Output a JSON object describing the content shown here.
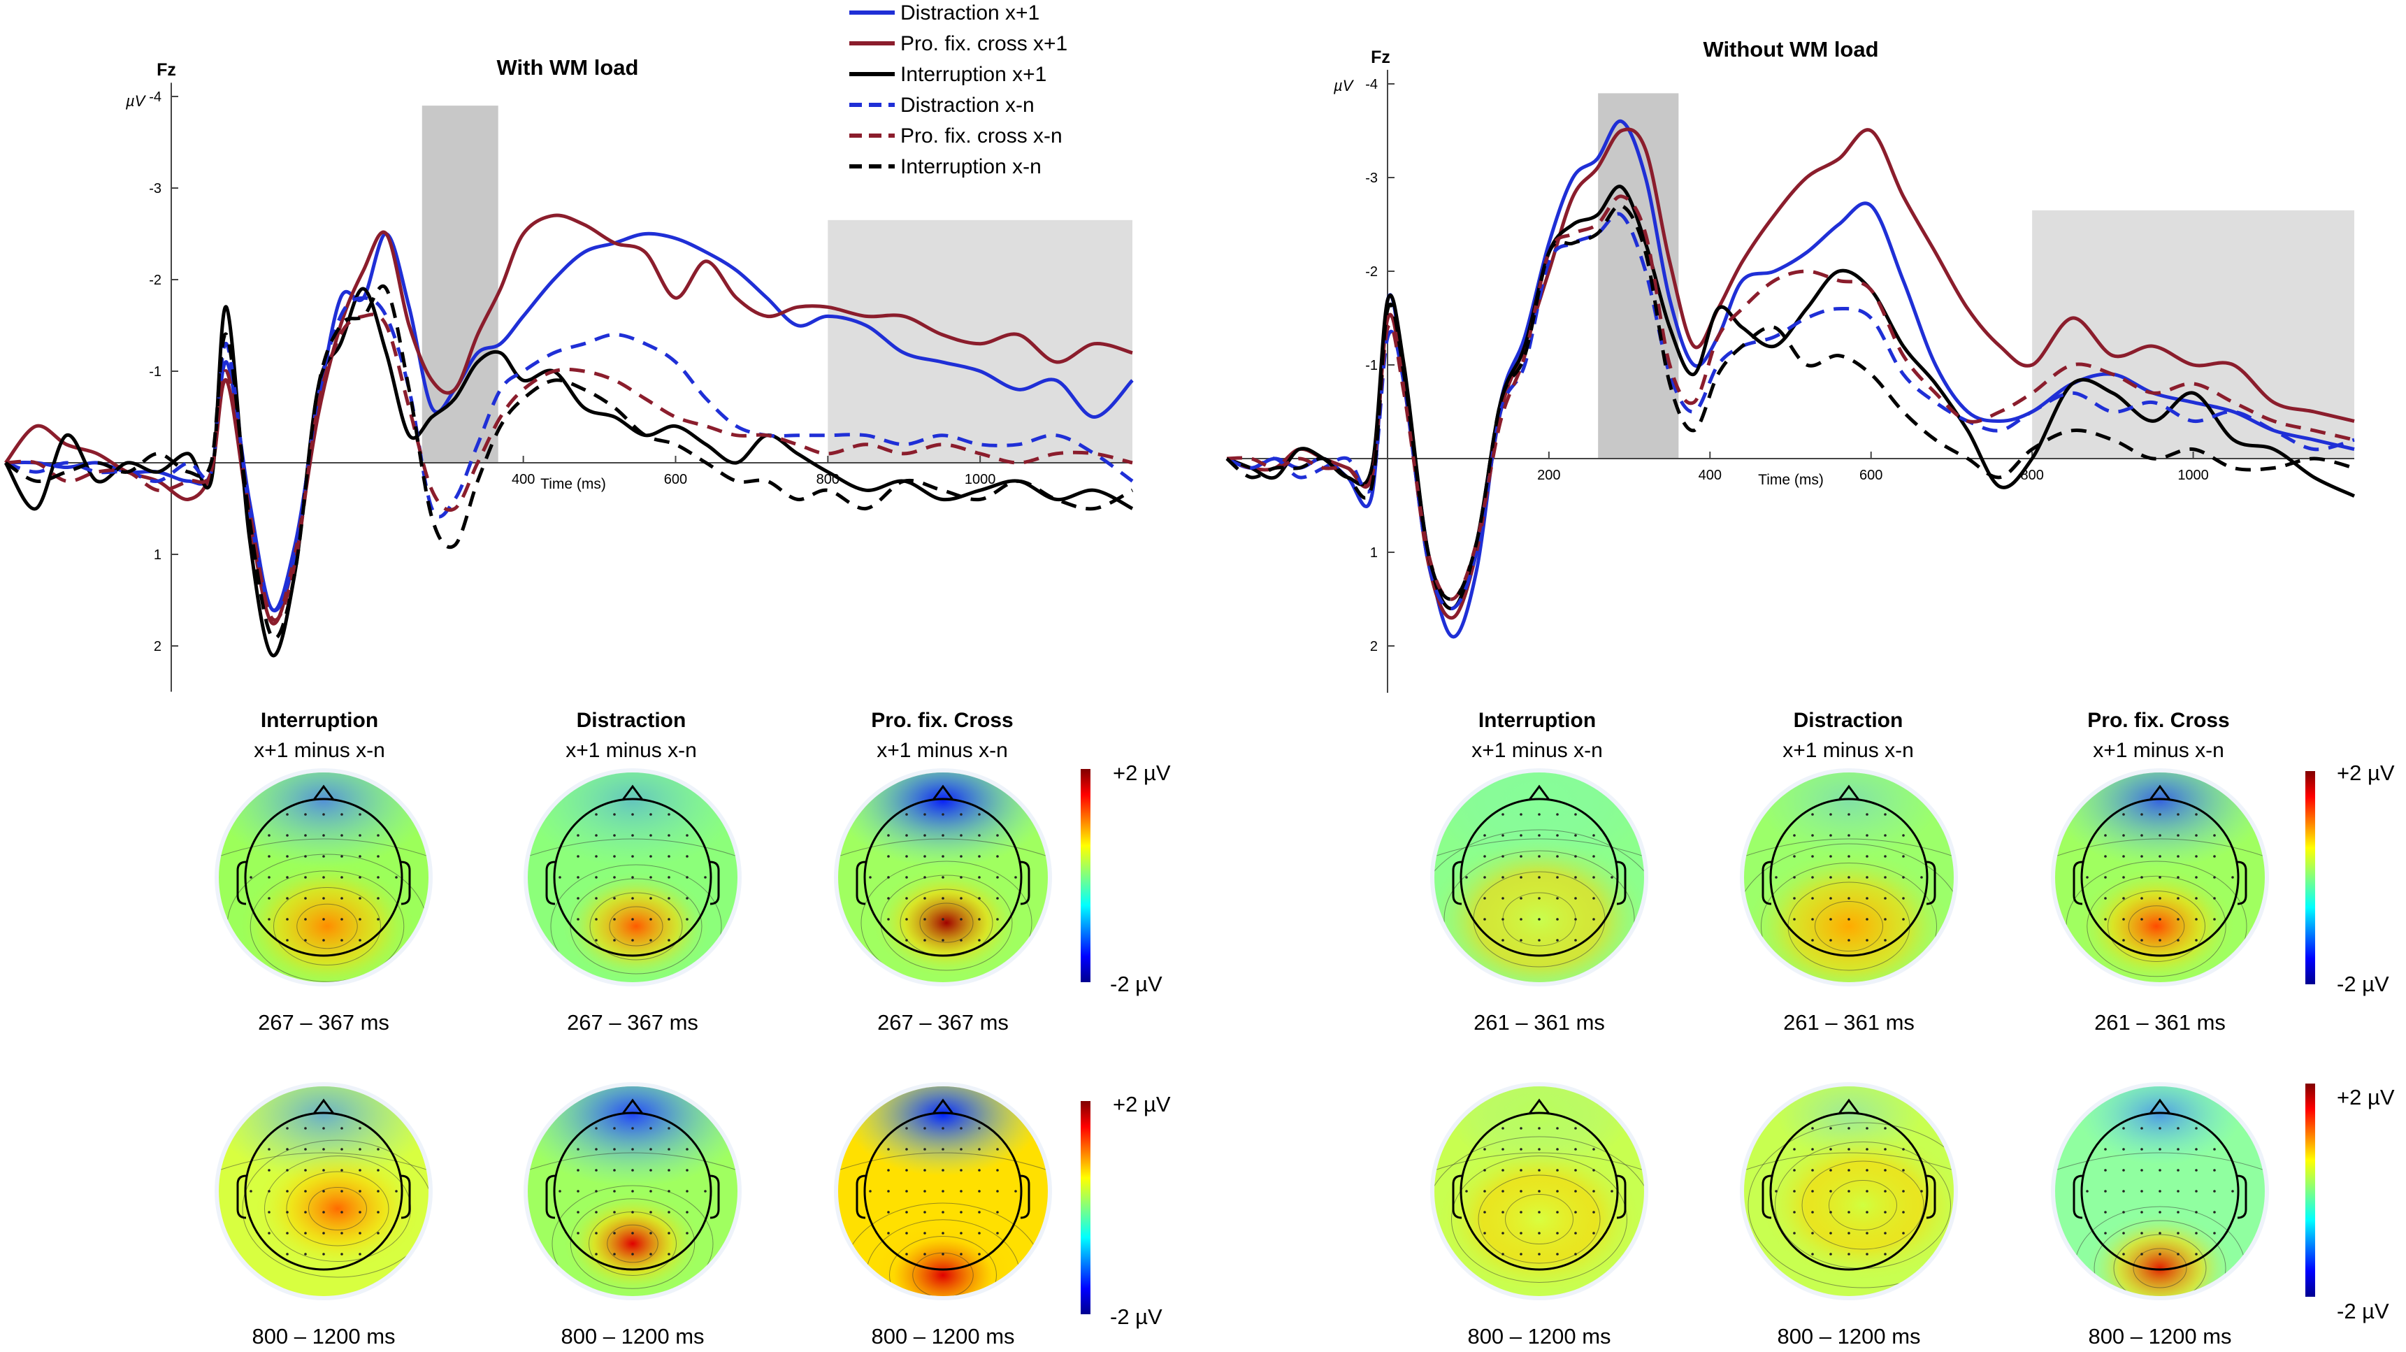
{
  "colors": {
    "distraction": "#1f2fd6",
    "profix": "#8b1d2c",
    "interruption": "#000000",
    "window": "#c8c8c8",
    "window_light": "#dedede"
  },
  "legend": [
    {
      "label": "Distraction x+1",
      "color": "#1f2fd6",
      "dashed": false
    },
    {
      "label": "Pro. fix. cross x+1",
      "color": "#8b1d2c",
      "dashed": false
    },
    {
      "label": "Interruption x+1",
      "color": "#000000",
      "dashed": false
    },
    {
      "label": "Distraction x-n",
      "color": "#1f2fd6",
      "dashed": true
    },
    {
      "label": "Pro. fix. cross x-n",
      "color": "#8b1d2c",
      "dashed": true
    },
    {
      "label": "Interruption x-n",
      "color": "#000000",
      "dashed": true
    }
  ],
  "chart_data": [
    {
      "type": "line",
      "title": "With WM load",
      "channel": "Fz",
      "unit": "µV",
      "xlabel": "Time (ms)",
      "x_ticks": [
        "400",
        "600",
        "800",
        "1000"
      ],
      "y_ticks": [
        "-4",
        "-3",
        "-2",
        "-1",
        "1",
        "2"
      ],
      "xlim": [
        -280,
        1200
      ],
      "ylim": [
        -4,
        2.5
      ],
      "y_inverted": true,
      "windows_ms": [
        [
          267,
          367
        ],
        [
          800,
          1200
        ]
      ],
      "x": [
        -280,
        -240,
        -200,
        -160,
        -120,
        -80,
        -40,
        -10,
        10,
        40,
        70,
        100,
        130,
        160,
        190,
        220,
        250,
        280,
        310,
        340,
        370,
        400,
        440,
        480,
        520,
        560,
        600,
        640,
        680,
        720,
        760,
        800,
        850,
        900,
        950,
        1000,
        1050,
        1100,
        1150,
        1200
      ],
      "series": [
        {
          "name": "Distraction x+1",
          "values": [
            0.0,
            0.0,
            0.05,
            0.0,
            0.1,
            0.1,
            0.2,
            0.1,
            -1.1,
            0.4,
            1.6,
            0.9,
            -0.6,
            -1.8,
            -1.8,
            -2.5,
            -1.7,
            -0.6,
            -0.8,
            -1.2,
            -1.3,
            -1.6,
            -2.0,
            -2.3,
            -2.4,
            -2.5,
            -2.45,
            -2.3,
            -2.1,
            -1.8,
            -1.5,
            -1.6,
            -1.5,
            -1.2,
            -1.1,
            -1.0,
            -0.8,
            -0.9,
            -0.5,
            -0.9
          ]
        },
        {
          "name": "Pro. fix. cross x+1",
          "values": [
            0.0,
            -0.4,
            -0.2,
            -0.1,
            0.1,
            0.2,
            0.4,
            0.1,
            -0.9,
            0.6,
            1.75,
            1.0,
            -0.5,
            -1.5,
            -2.1,
            -2.5,
            -1.5,
            -0.9,
            -0.8,
            -1.4,
            -1.9,
            -2.5,
            -2.7,
            -2.6,
            -2.4,
            -2.3,
            -1.8,
            -2.2,
            -1.8,
            -1.6,
            -1.7,
            -1.7,
            -1.6,
            -1.6,
            -1.4,
            -1.3,
            -1.4,
            -1.1,
            -1.3,
            -1.2
          ]
        },
        {
          "name": "Interruption x+1",
          "values": [
            0.0,
            0.5,
            -0.3,
            0.2,
            0.0,
            0.1,
            -0.1,
            0.2,
            -1.7,
            0.8,
            2.1,
            1.2,
            -0.8,
            -1.3,
            -1.9,
            -1.2,
            -0.3,
            -0.5,
            -0.7,
            -1.1,
            -1.2,
            -0.9,
            -1.0,
            -0.6,
            -0.5,
            -0.3,
            -0.4,
            -0.2,
            0.0,
            -0.3,
            -0.1,
            0.1,
            0.3,
            0.2,
            0.4,
            0.3,
            0.2,
            0.4,
            0.3,
            0.5
          ]
        },
        {
          "name": "Distraction x-n",
          "values": [
            0.0,
            0.1,
            0.0,
            0.1,
            0.1,
            0.2,
            0.0,
            0.1,
            -1.3,
            0.5,
            1.6,
            1.0,
            -0.7,
            -1.6,
            -1.8,
            -1.6,
            -0.8,
            0.5,
            0.4,
            -0.2,
            -0.8,
            -1.0,
            -1.2,
            -1.3,
            -1.4,
            -1.3,
            -1.1,
            -0.7,
            -0.4,
            -0.3,
            -0.3,
            -0.3,
            -0.3,
            -0.2,
            -0.3,
            -0.2,
            -0.2,
            -0.3,
            -0.1,
            0.2
          ]
        },
        {
          "name": "Pro. fix. cross x-n",
          "values": [
            0.0,
            0.0,
            0.2,
            0.1,
            0.1,
            0.3,
            0.2,
            0.1,
            -1.0,
            0.5,
            1.7,
            1.1,
            -0.6,
            -1.4,
            -1.6,
            -1.5,
            -0.6,
            0.3,
            0.5,
            0.0,
            -0.5,
            -0.8,
            -1.0,
            -1.0,
            -0.9,
            -0.7,
            -0.5,
            -0.4,
            -0.3,
            -0.3,
            -0.2,
            -0.1,
            -0.2,
            -0.1,
            -0.2,
            -0.1,
            0.0,
            -0.1,
            -0.1,
            0.0
          ]
        },
        {
          "name": "Interruption x-n",
          "values": [
            0.0,
            0.2,
            0.1,
            0.0,
            0.1,
            -0.1,
            0.1,
            0.0,
            -1.4,
            0.6,
            1.9,
            1.2,
            -0.8,
            -1.5,
            -1.6,
            -1.9,
            -0.8,
            0.6,
            0.9,
            0.2,
            -0.4,
            -0.7,
            -0.9,
            -0.8,
            -0.6,
            -0.3,
            -0.2,
            0.0,
            0.2,
            0.2,
            0.4,
            0.3,
            0.5,
            0.2,
            0.3,
            0.4,
            0.2,
            0.4,
            0.5,
            0.3
          ]
        }
      ]
    },
    {
      "type": "line",
      "title": "Without WM load",
      "channel": "Fz",
      "unit": "µV",
      "xlabel": "Time (ms)",
      "x_ticks": [
        "200",
        "400",
        "600",
        "800",
        "1000"
      ],
      "y_ticks": [
        "-4",
        "-3",
        "-2",
        "-1",
        "1",
        "2"
      ],
      "xlim": [
        -200,
        1200
      ],
      "ylim": [
        -4,
        2.5
      ],
      "y_inverted": true,
      "windows_ms": [
        [
          261,
          361
        ],
        [
          800,
          1200
        ]
      ],
      "x": [
        -200,
        -170,
        -140,
        -110,
        -80,
        -50,
        -20,
        0,
        20,
        50,
        80,
        110,
        140,
        170,
        200,
        230,
        260,
        290,
        320,
        350,
        380,
        410,
        440,
        480,
        520,
        560,
        600,
        640,
        680,
        720,
        760,
        800,
        850,
        900,
        950,
        1000,
        1050,
        1100,
        1150,
        1200
      ],
      "series": [
        {
          "name": "Distraction x+1",
          "values": [
            0.0,
            0.1,
            0.0,
            0.1,
            0.0,
            0.2,
            0.4,
            -1.7,
            -0.9,
            1.0,
            1.9,
            1.2,
            -0.6,
            -1.3,
            -2.3,
            -3.0,
            -3.2,
            -3.6,
            -3.0,
            -1.7,
            -1.0,
            -1.3,
            -1.9,
            -2.0,
            -2.2,
            -2.5,
            -2.7,
            -1.9,
            -1.0,
            -0.5,
            -0.4,
            -0.5,
            -0.8,
            -0.9,
            -0.7,
            -0.6,
            -0.5,
            -0.3,
            -0.2,
            -0.1
          ]
        },
        {
          "name": "Pro. fix. cross x+1",
          "values": [
            0.0,
            0.1,
            0.1,
            -0.1,
            0.0,
            0.1,
            0.2,
            -1.5,
            -0.8,
            1.1,
            1.7,
            1.0,
            -0.5,
            -1.2,
            -2.0,
            -2.8,
            -3.1,
            -3.5,
            -3.3,
            -2.1,
            -1.2,
            -1.6,
            -2.1,
            -2.6,
            -3.0,
            -3.2,
            -3.5,
            -2.8,
            -2.2,
            -1.6,
            -1.2,
            -1.0,
            -1.5,
            -1.1,
            -1.2,
            -1.0,
            -1.0,
            -0.6,
            -0.5,
            -0.4
          ]
        },
        {
          "name": "Interruption x+1",
          "values": [
            0.0,
            0.1,
            0.2,
            -0.1,
            0.0,
            0.2,
            0.1,
            -1.7,
            -1.0,
            1.0,
            1.6,
            0.9,
            -0.6,
            -1.2,
            -2.2,
            -2.5,
            -2.6,
            -2.9,
            -2.3,
            -1.4,
            -0.9,
            -1.6,
            -1.4,
            -1.2,
            -1.6,
            -2.0,
            -1.8,
            -1.2,
            -0.8,
            -0.3,
            0.3,
            0.0,
            -0.8,
            -0.7,
            -0.4,
            -0.7,
            -0.2,
            -0.1,
            0.2,
            0.4
          ]
        },
        {
          "name": "Distraction x-n",
          "values": [
            0.0,
            0.1,
            0.0,
            0.2,
            0.1,
            0.0,
            0.3,
            -1.3,
            -0.8,
            1.1,
            1.6,
            1.0,
            -0.5,
            -1.0,
            -2.1,
            -2.3,
            -2.4,
            -2.6,
            -2.0,
            -0.9,
            -0.5,
            -1.0,
            -1.2,
            -1.3,
            -1.5,
            -1.6,
            -1.5,
            -0.9,
            -0.6,
            -0.4,
            -0.3,
            -0.5,
            -0.7,
            -0.5,
            -0.6,
            -0.4,
            -0.5,
            -0.3,
            -0.1,
            -0.2
          ]
        },
        {
          "name": "Pro. fix. cross x-n",
          "values": [
            0.0,
            0.0,
            0.1,
            0.0,
            0.1,
            0.1,
            0.2,
            -1.4,
            -0.7,
            1.0,
            1.5,
            0.9,
            -0.4,
            -1.1,
            -2.2,
            -2.4,
            -2.5,
            -2.8,
            -2.4,
            -1.0,
            -0.6,
            -1.3,
            -1.6,
            -1.9,
            -2.0,
            -1.9,
            -1.8,
            -1.1,
            -0.7,
            -0.4,
            -0.5,
            -0.7,
            -1.0,
            -0.9,
            -0.7,
            -0.8,
            -0.6,
            -0.4,
            -0.3,
            -0.2
          ]
        },
        {
          "name": "Interruption x-n",
          "values": [
            0.0,
            0.2,
            0.1,
            0.1,
            0.0,
            0.2,
            0.3,
            -1.6,
            -0.9,
            1.0,
            1.5,
            0.9,
            -0.6,
            -1.1,
            -2.2,
            -2.3,
            -2.4,
            -2.7,
            -2.2,
            -0.8,
            -0.3,
            -0.9,
            -1.2,
            -1.4,
            -1.0,
            -1.1,
            -0.9,
            -0.5,
            -0.2,
            0.0,
            0.2,
            -0.1,
            -0.3,
            -0.2,
            0.0,
            -0.1,
            0.1,
            0.1,
            0.0,
            0.1
          ]
        }
      ]
    }
  ],
  "topo_titles": {
    "interruption": "Interruption",
    "distraction": "Distraction",
    "profix": "Pro. fix. Cross",
    "contrast": "x+1 minus x-n"
  },
  "colorbar": {
    "max_label": "+2 µV",
    "min_label": "-2 µV"
  },
  "time_windows": {
    "with_early": "267 – 367 ms",
    "with_late": "800 – 1200 ms",
    "without_early": "261 – 361 ms",
    "without_late": "800 – 1200 ms"
  }
}
